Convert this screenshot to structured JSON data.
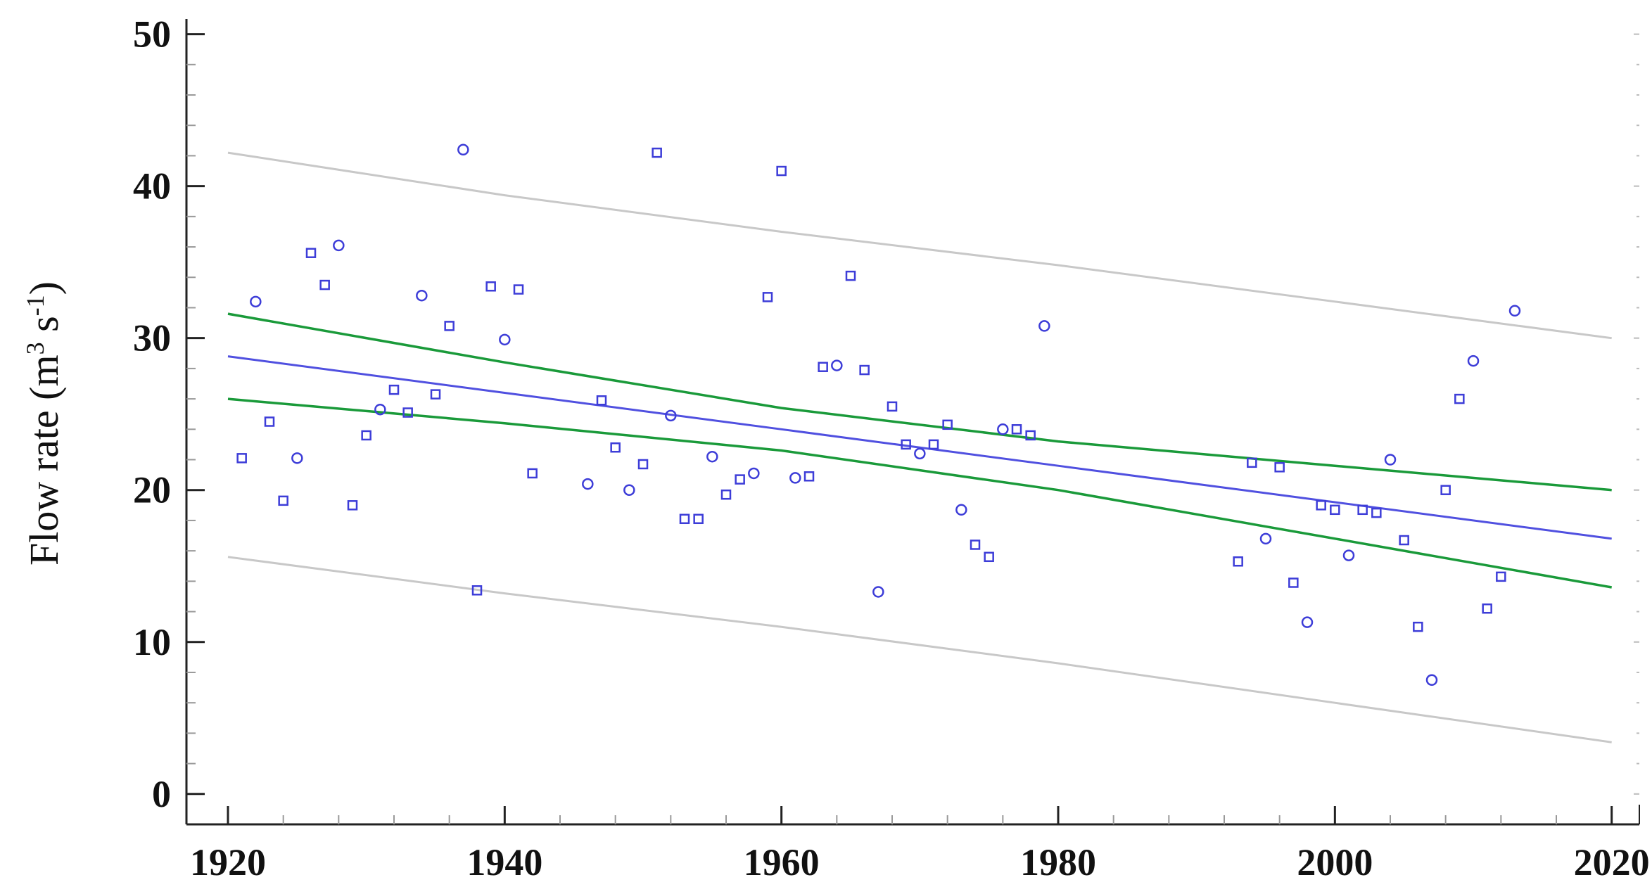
{
  "chart_data": {
    "type": "scatter",
    "title": "",
    "xlabel": "",
    "ylabel": "Flow rate (m",
    "ylabel_unit_sup1": "3",
    "ylabel_unit_mid": " s",
    "ylabel_unit_sup2": "-1",
    "ylabel_unit_end": ")",
    "xlim": [
      1917,
      2022
    ],
    "ylim": [
      -2,
      51
    ],
    "x_ticks": [
      1920,
      1940,
      1960,
      1980,
      2000,
      2020
    ],
    "y_ticks": [
      0,
      10,
      20,
      30,
      40,
      50
    ],
    "grid": false,
    "colors": {
      "points": "#3d3dd8",
      "trend": "#5050e0",
      "confidence": "#1a9a3a",
      "prediction": "#c8c8c8",
      "axis": "#222222"
    },
    "points": [
      {
        "x": 1921,
        "y": 22.1
      },
      {
        "x": 1922,
        "y": 32.4
      },
      {
        "x": 1923,
        "y": 24.5
      },
      {
        "x": 1924,
        "y": 19.3
      },
      {
        "x": 1925,
        "y": 22.1
      },
      {
        "x": 1926,
        "y": 35.6
      },
      {
        "x": 1927,
        "y": 33.5
      },
      {
        "x": 1928,
        "y": 36.1
      },
      {
        "x": 1929,
        "y": 19.0
      },
      {
        "x": 1930,
        "y": 23.6
      },
      {
        "x": 1931,
        "y": 25.3
      },
      {
        "x": 1932,
        "y": 26.6
      },
      {
        "x": 1933,
        "y": 25.1
      },
      {
        "x": 1934,
        "y": 32.8
      },
      {
        "x": 1935,
        "y": 26.3
      },
      {
        "x": 1936,
        "y": 30.8
      },
      {
        "x": 1937,
        "y": 42.4
      },
      {
        "x": 1938,
        "y": 13.4
      },
      {
        "x": 1939,
        "y": 33.4
      },
      {
        "x": 1940,
        "y": 29.9
      },
      {
        "x": 1941,
        "y": 33.2
      },
      {
        "x": 1942,
        "y": 21.1
      },
      {
        "x": 1946,
        "y": 20.4
      },
      {
        "x": 1947,
        "y": 25.9
      },
      {
        "x": 1948,
        "y": 22.8
      },
      {
        "x": 1949,
        "y": 20.0
      },
      {
        "x": 1950,
        "y": 21.7
      },
      {
        "x": 1951,
        "y": 42.2
      },
      {
        "x": 1952,
        "y": 24.9
      },
      {
        "x": 1953,
        "y": 18.1
      },
      {
        "x": 1954,
        "y": 18.1
      },
      {
        "x": 1955,
        "y": 22.2
      },
      {
        "x": 1956,
        "y": 19.7
      },
      {
        "x": 1957,
        "y": 20.7
      },
      {
        "x": 1958,
        "y": 21.1
      },
      {
        "x": 1959,
        "y": 32.7
      },
      {
        "x": 1960,
        "y": 41.0
      },
      {
        "x": 1961,
        "y": 20.8
      },
      {
        "x": 1962,
        "y": 20.9
      },
      {
        "x": 1963,
        "y": 28.1
      },
      {
        "x": 1964,
        "y": 28.2
      },
      {
        "x": 1965,
        "y": 34.1
      },
      {
        "x": 1966,
        "y": 27.9
      },
      {
        "x": 1967,
        "y": 13.3
      },
      {
        "x": 1968,
        "y": 25.5
      },
      {
        "x": 1969,
        "y": 23.0
      },
      {
        "x": 1970,
        "y": 22.4
      },
      {
        "x": 1971,
        "y": 23.0
      },
      {
        "x": 1972,
        "y": 24.3
      },
      {
        "x": 1973,
        "y": 18.7
      },
      {
        "x": 1974,
        "y": 16.4
      },
      {
        "x": 1975,
        "y": 15.6
      },
      {
        "x": 1976,
        "y": 24.0
      },
      {
        "x": 1977,
        "y": 24.0
      },
      {
        "x": 1978,
        "y": 23.6
      },
      {
        "x": 1979,
        "y": 30.8
      },
      {
        "x": 1993,
        "y": 15.3
      },
      {
        "x": 1994,
        "y": 21.8
      },
      {
        "x": 1995,
        "y": 16.8
      },
      {
        "x": 1996,
        "y": 21.5
      },
      {
        "x": 1997,
        "y": 13.9
      },
      {
        "x": 1998,
        "y": 11.3
      },
      {
        "x": 1999,
        "y": 19.0
      },
      {
        "x": 2000,
        "y": 18.7
      },
      {
        "x": 2001,
        "y": 15.7
      },
      {
        "x": 2002,
        "y": 18.7
      },
      {
        "x": 2003,
        "y": 18.5
      },
      {
        "x": 2004,
        "y": 22.0
      },
      {
        "x": 2005,
        "y": 16.7
      },
      {
        "x": 2006,
        "y": 11.0
      },
      {
        "x": 2007,
        "y": 7.5
      },
      {
        "x": 2008,
        "y": 20.0
      },
      {
        "x": 2009,
        "y": 26.0
      },
      {
        "x": 2010,
        "y": 28.5
      },
      {
        "x": 2011,
        "y": 12.2
      },
      {
        "x": 2012,
        "y": 14.3
      },
      {
        "x": 2013,
        "y": 31.8
      }
    ],
    "lines": [
      {
        "role": "trend",
        "points": [
          [
            1920,
            28.8
          ],
          [
            1940,
            26.4
          ],
          [
            1960,
            24.0
          ],
          [
            1980,
            21.6
          ],
          [
            2000,
            19.2
          ],
          [
            2020,
            16.8
          ]
        ]
      },
      {
        "role": "confidence-upper",
        "points": [
          [
            1920,
            31.6
          ],
          [
            1940,
            28.4
          ],
          [
            1960,
            25.4
          ],
          [
            1980,
            23.2
          ],
          [
            2000,
            21.6
          ],
          [
            2020,
            20.0
          ]
        ]
      },
      {
        "role": "confidence-lower",
        "points": [
          [
            1920,
            26.0
          ],
          [
            1940,
            24.4
          ],
          [
            1960,
            22.6
          ],
          [
            1980,
            20.0
          ],
          [
            2000,
            16.8
          ],
          [
            2020,
            13.6
          ]
        ]
      },
      {
        "role": "prediction-upper",
        "points": [
          [
            1920,
            42.2
          ],
          [
            1940,
            39.4
          ],
          [
            1960,
            37.0
          ],
          [
            1980,
            34.8
          ],
          [
            2000,
            32.4
          ],
          [
            2020,
            30.0
          ]
        ]
      },
      {
        "role": "prediction-lower",
        "points": [
          [
            1920,
            15.6
          ],
          [
            1940,
            13.2
          ],
          [
            1960,
            11.0
          ],
          [
            1980,
            8.6
          ],
          [
            2000,
            6.0
          ],
          [
            2020,
            3.4
          ]
        ]
      }
    ]
  }
}
